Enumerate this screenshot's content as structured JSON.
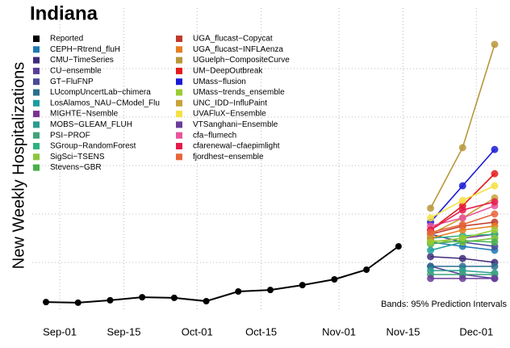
{
  "chart_data": {
    "type": "line",
    "title": "Indiana",
    "y_label": "New Weekly Hospitalizations",
    "annotation": "Bands: 95% Prediction Intervals",
    "x": [
      "Aug-29",
      "Sep-05",
      "Sep-12",
      "Sep-19",
      "Sep-26",
      "Oct-03",
      "Oct-10",
      "Oct-17",
      "Oct-24",
      "Oct-31",
      "Nov-07",
      "Nov-14",
      "Nov-21",
      "Nov-28",
      "Dec-05"
    ],
    "xlim": [
      "Aug-26",
      "Dec-08"
    ],
    "xticks": [
      "Sep-01",
      "Sep-15",
      "Oct-01",
      "Oct-15",
      "Nov-01",
      "Nov-15",
      "Dec-01"
    ],
    "ylim": [
      0,
      100
    ],
    "ygrid": [
      16,
      32,
      48,
      64,
      80
    ],
    "grid": true,
    "series": [
      {
        "name": "Reported",
        "color": "#000000",
        "values": [
          2.9,
          2.7,
          3.5,
          4.5,
          4.3,
          3.2,
          6.4,
          6.9,
          8.5,
          10.4,
          13.6,
          21.3,
          null,
          null,
          null
        ]
      },
      {
        "name": "CEPH−Rtrend_fluH",
        "color": "#1f78b4",
        "values": [
          null,
          null,
          null,
          null,
          null,
          null,
          null,
          null,
          null,
          null,
          null,
          null,
          22.7,
          21.3,
          20
        ]
      },
      {
        "name": "CMU−TimeSeries",
        "color": "#3f2b7a",
        "values": [
          null,
          null,
          null,
          null,
          null,
          null,
          null,
          null,
          null,
          null,
          null,
          null,
          17.9,
          17.3,
          16
        ]
      },
      {
        "name": "CU−ensemble",
        "color": "#5a3d9a",
        "values": [
          null,
          null,
          null,
          null,
          null,
          null,
          null,
          null,
          null,
          null,
          null,
          null,
          14.7,
          12,
          10.7
        ]
      },
      {
        "name": "GT−FluFNP",
        "color": "#4a4a9a",
        "values": [
          null,
          null,
          null,
          null,
          null,
          null,
          null,
          null,
          null,
          null,
          null,
          null,
          25.3,
          22.7,
          21.3
        ]
      },
      {
        "name": "LUcompUncertLab−chimera",
        "color": "#2c6f8f",
        "values": [
          null,
          null,
          null,
          null,
          null,
          null,
          null,
          null,
          null,
          null,
          null,
          null,
          14.7,
          14.7,
          14.7
        ]
      },
      {
        "name": "LosAlamos_NAU−CModel_Flu",
        "color": "#1b9e9e",
        "values": [
          null,
          null,
          null,
          null,
          null,
          null,
          null,
          null,
          null,
          null,
          null,
          null,
          20,
          22.7,
          24
        ]
      },
      {
        "name": "MIGHTE−Nsemble",
        "color": "#7b3294",
        "values": [
          null,
          null,
          null,
          null,
          null,
          null,
          null,
          null,
          null,
          null,
          null,
          null,
          22.7,
          24,
          25.3
        ]
      },
      {
        "name": "MOBS−GLEAM_FLUH",
        "color": "#2a9d8f",
        "values": [
          null,
          null,
          null,
          null,
          null,
          null,
          null,
          null,
          null,
          null,
          null,
          null,
          13.3,
          13.3,
          12.5
        ]
      },
      {
        "name": "PSI−PROF",
        "color": "#3fa37a",
        "values": [
          null,
          null,
          null,
          null,
          null,
          null,
          null,
          null,
          null,
          null,
          null,
          null,
          12,
          12,
          12
        ]
      },
      {
        "name": "SGroup−RandomForest",
        "color": "#2fb27f",
        "values": [
          null,
          null,
          null,
          null,
          null,
          null,
          null,
          null,
          null,
          null,
          null,
          null,
          24,
          24.8,
          25.3
        ]
      },
      {
        "name": "SigSci−TSENS",
        "color": "#8cc63f",
        "values": [
          null,
          null,
          null,
          null,
          null,
          null,
          null,
          null,
          null,
          null,
          null,
          null,
          23.2,
          22.7,
          24
        ]
      },
      {
        "name": "Stevens−GBR",
        "color": "#46b04b",
        "values": [
          null,
          null,
          null,
          null,
          null,
          null,
          null,
          null,
          null,
          null,
          null,
          null,
          22.1,
          23.2,
          22.7
        ]
      },
      {
        "name": "UGA_flucast−Copycat",
        "color": "#c0392b",
        "values": [
          null,
          null,
          null,
          null,
          null,
          null,
          null,
          null,
          null,
          null,
          null,
          null,
          25.3,
          28,
          29.3
        ]
      },
      {
        "name": "UGA_flucast−INFLAenza",
        "color": "#e67e22",
        "values": [
          null,
          null,
          null,
          null,
          null,
          null,
          null,
          null,
          null,
          null,
          null,
          null,
          24,
          26.7,
          28
        ]
      },
      {
        "name": "UGuelph−CompositeCurve",
        "color": "#b8973a",
        "values": [
          null,
          null,
          null,
          null,
          null,
          null,
          null,
          null,
          null,
          null,
          null,
          null,
          33.9,
          53.9,
          88
        ]
      },
      {
        "name": "UM−DeepOutbreak",
        "color": "#e41a1c",
        "values": [
          null,
          null,
          null,
          null,
          null,
          null,
          null,
          null,
          null,
          null,
          null,
          null,
          26.7,
          34.7,
          45.3
        ]
      },
      {
        "name": "UMass−flusion",
        "color": "#1a1ad6",
        "values": [
          null,
          null,
          null,
          null,
          null,
          null,
          null,
          null,
          null,
          null,
          null,
          null,
          29.3,
          41.3,
          53.3
        ]
      },
      {
        "name": "UMass−trends_ensemble",
        "color": "#9acd32",
        "values": [
          null,
          null,
          null,
          null,
          null,
          null,
          null,
          null,
          null,
          null,
          null,
          null,
          22.7,
          24,
          26.7
        ]
      },
      {
        "name": "UNC_IDD−InfluPaint",
        "color": "#c8a23a",
        "values": [
          null,
          null,
          null,
          null,
          null,
          null,
          null,
          null,
          null,
          null,
          null,
          null,
          25.3,
          30.7,
          37.3
        ]
      },
      {
        "name": "UVAFluX−Ensemble",
        "color": "#f5e142",
        "values": [
          null,
          null,
          null,
          null,
          null,
          null,
          null,
          null,
          null,
          null,
          null,
          null,
          30.7,
          36.5,
          41.3
        ]
      },
      {
        "name": "VTSanghani−Ensemble",
        "color": "#6a3d9a",
        "values": [
          null,
          null,
          null,
          null,
          null,
          null,
          null,
          null,
          null,
          null,
          null,
          null,
          10.7,
          10.7,
          10.7
        ]
      },
      {
        "name": "cfa−flumech",
        "color": "#e8559b",
        "values": [
          null,
          null,
          null,
          null,
          null,
          null,
          null,
          null,
          null,
          null,
          null,
          null,
          28,
          30.7,
          34.7
        ]
      },
      {
        "name": "cfarenewal−cfaepimlight",
        "color": "#e6194b",
        "values": [
          null,
          null,
          null,
          null,
          null,
          null,
          null,
          null,
          null,
          null,
          null,
          null,
          26.7,
          33.3,
          36
        ]
      },
      {
        "name": "fjordhest−ensemble",
        "color": "#e8643c",
        "values": [
          null,
          null,
          null,
          null,
          null,
          null,
          null,
          null,
          null,
          null,
          null,
          null,
          25.9,
          28.5,
          32
        ]
      }
    ]
  }
}
